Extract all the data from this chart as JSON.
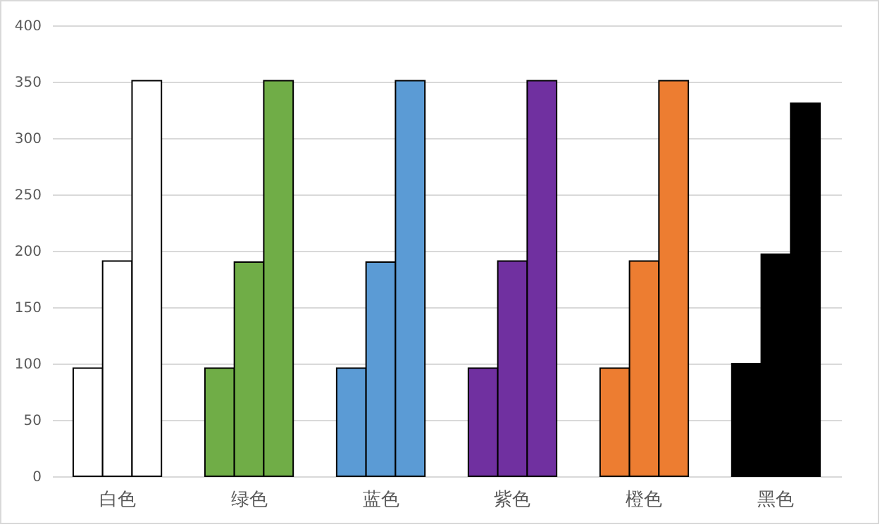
{
  "chart_data": {
    "type": "bar",
    "categories": [
      "白色",
      "绿色",
      "蓝色",
      "紫色",
      "橙色",
      "黑色"
    ],
    "series": [
      {
        "colors": [
          "#ffffff",
          "#70ad47",
          "#5b9bd5",
          "#7030a0",
          "#ed7d31",
          "#000000"
        ],
        "values": [
          96,
          96,
          96,
          96,
          96,
          100
        ]
      },
      {
        "colors": [
          "#ffffff",
          "#70ad47",
          "#5b9bd5",
          "#7030a0",
          "#ed7d31",
          "#000000"
        ],
        "values": [
          191,
          190,
          190,
          191,
          191,
          197
        ]
      },
      {
        "colors": [
          "#ffffff",
          "#70ad47",
          "#5b9bd5",
          "#7030a0",
          "#ed7d31",
          "#000000"
        ],
        "values": [
          351,
          351,
          351,
          351,
          351,
          331
        ]
      }
    ],
    "ylim": [
      0,
      400
    ],
    "yticks": [
      0,
      50,
      100,
      150,
      200,
      250,
      300,
      350,
      400
    ],
    "grid": "y"
  }
}
